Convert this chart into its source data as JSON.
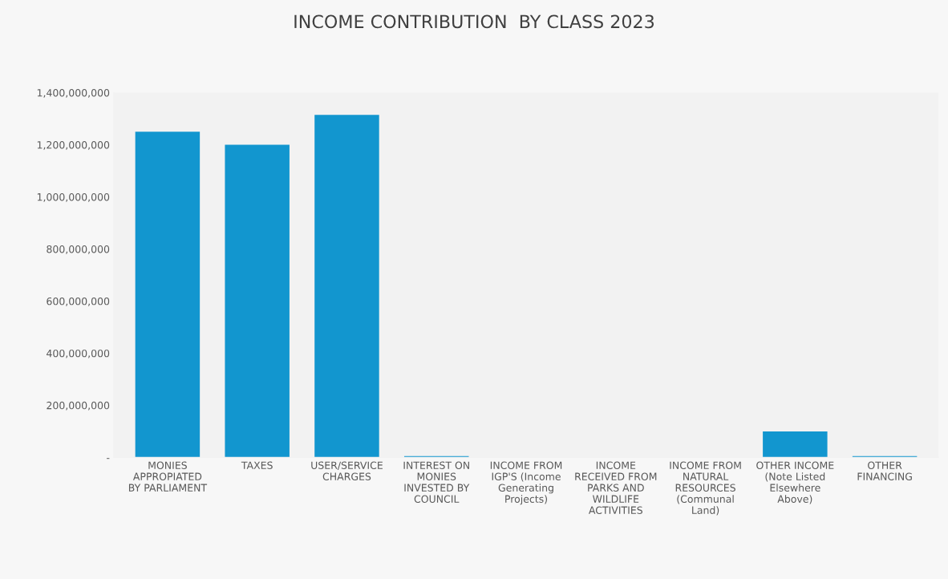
{
  "chart_data": {
    "type": "bar",
    "title": "INCOME CONTRIBUTION  BY CLASS 2023",
    "categories": [
      "MONIES APPROPIATED BY PARLIAMENT",
      "TAXES",
      "USER/SERVICE CHARGES",
      "INTEREST ON MONIES INVESTED BY COUNCIL",
      "INCOME FROM IGP'S (Income Generating Projects)",
      "INCOME RECEIVED FROM PARKS AND WILDLIFE ACTIVITIES",
      "INCOME FROM NATURAL RESOURCES (Communal Land)",
      "OTHER INCOME (Note Listed Elsewhere Above)",
      "OTHER FINANCING"
    ],
    "values": [
      1250000000,
      1200000000,
      1315000000,
      5000000,
      0,
      0,
      0,
      100000000,
      5000000
    ],
    "color": "#1296cf",
    "ylim": [
      0,
      1400000000
    ],
    "yticks": [
      {
        "value": 0,
        "label": "-"
      },
      {
        "value": 200000000,
        "label": "200,000,000"
      },
      {
        "value": 400000000,
        "label": "400,000,000"
      },
      {
        "value": 600000000,
        "label": "600,000,000"
      },
      {
        "value": 800000000,
        "label": "800,000,000"
      },
      {
        "value": 1000000000,
        "label": "1,000,000,000"
      },
      {
        "value": 1200000000,
        "label": "1,200,000,000"
      },
      {
        "value": 1400000000,
        "label": "1,400,000,000"
      }
    ],
    "grid": false
  }
}
